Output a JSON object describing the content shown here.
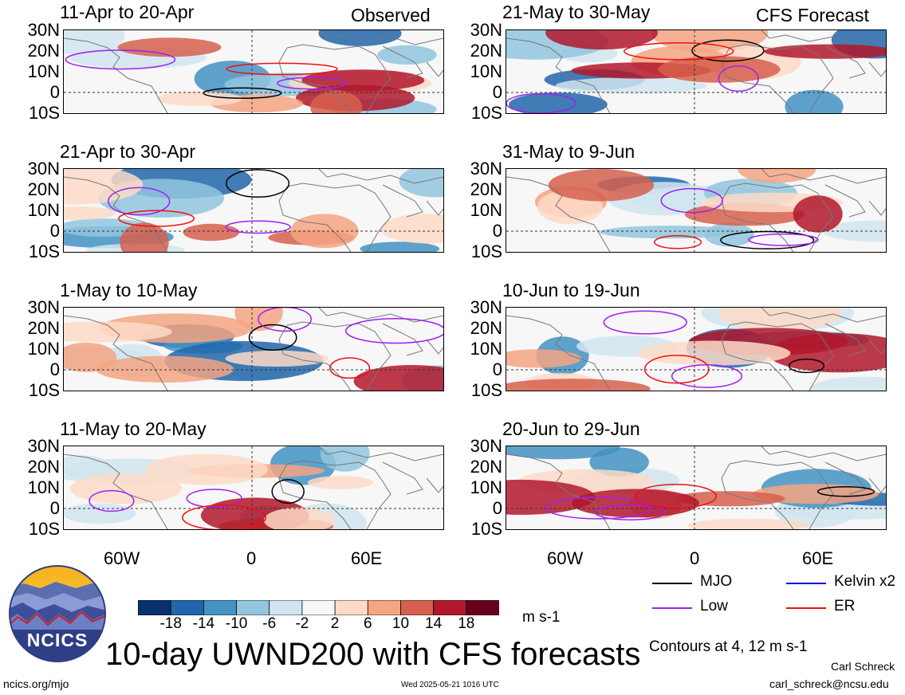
{
  "title": "10-day UWND200 with CFS forecasts",
  "observed_label": "Observed",
  "forecast_label": "CFS Forecast",
  "panels_left": [
    {
      "title": "11-Apr to 20-Apr"
    },
    {
      "title": "21-Apr to 30-Apr"
    },
    {
      "title": "1-May to 10-May"
    },
    {
      "title": "11-May to 20-May"
    }
  ],
  "panels_right": [
    {
      "title": "21-May to 30-May"
    },
    {
      "title": "31-May to 9-Jun"
    },
    {
      "title": "10-Jun to 19-Jun"
    },
    {
      "title": "20-Jun to 29-Jun"
    }
  ],
  "lat_labels": [
    "30N",
    "20N",
    "10N",
    "0",
    "10S"
  ],
  "lon_labels": [
    "60W",
    "0",
    "60E"
  ],
  "colorbar": {
    "ticks": [
      "-18",
      "-14",
      "-10",
      "-6",
      "-2",
      "2",
      "6",
      "10",
      "14",
      "18"
    ],
    "colors": [
      "#08306b",
      "#2166ac",
      "#4393c3",
      "#92c5de",
      "#d1e5f0",
      "#f7f7f7",
      "#fddbc7",
      "#f4a582",
      "#d6604d",
      "#b2182b",
      "#67001f"
    ],
    "units": "m s-1"
  },
  "legend": {
    "items": [
      {
        "label": "MJO",
        "color": "#000000"
      },
      {
        "label": "Kelvin x2",
        "color": "#0000dd"
      },
      {
        "label": "Low",
        "color": "#a020f0"
      },
      {
        "label": "ER",
        "color": "#ee1111"
      }
    ],
    "note": "Contours at 4, 12 m s-1"
  },
  "logo_text": "NCICS",
  "footer": {
    "url": "ncics.org/mjo",
    "timestamp": "Wed 2025-05-21 1016 UTC",
    "author": "Carl Schreck",
    "email": "carl_schreck@ncsu.edu"
  }
}
